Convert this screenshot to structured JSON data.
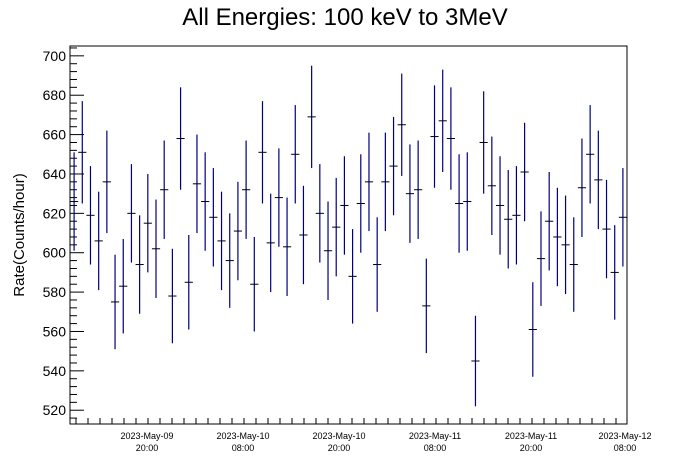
{
  "chart_data": {
    "type": "scatter",
    "title": "All Energies:  100 keV to 3MeV",
    "ylabel": "Rate(Counts/hour)",
    "xlabel": "",
    "ylim": [
      513,
      705
    ],
    "yticks": [
      520,
      540,
      560,
      580,
      600,
      620,
      640,
      660,
      680,
      700
    ],
    "xticks": [
      {
        "date": "2023-May-09",
        "time": "20:00"
      },
      {
        "date": "2023-May-10",
        "time": "08:00"
      },
      {
        "date": "2023-May-10",
        "time": "20:00"
      },
      {
        "date": "2023-May-11",
        "time": "08:00"
      },
      {
        "date": "2023-May-11",
        "time": "20:00"
      },
      {
        "date": "2023-May-12",
        "time": "08:00"
      }
    ],
    "series": [
      {
        "color": "#00007f",
        "points": [
          {
            "y": 626,
            "err": 25
          },
          {
            "y": 651,
            "err": 26
          },
          {
            "y": 619,
            "err": 25
          },
          {
            "y": 606,
            "err": 25
          },
          {
            "y": 636,
            "err": 26
          },
          {
            "y": 575,
            "err": 24
          },
          {
            "y": 583,
            "err": 24
          },
          {
            "y": 620,
            "err": 25
          },
          {
            "y": 594,
            "err": 25
          },
          {
            "y": 615,
            "err": 25
          },
          {
            "y": 602,
            "err": 25
          },
          {
            "y": 632,
            "err": 25
          },
          {
            "y": 578,
            "err": 24
          },
          {
            "y": 658,
            "err": 26
          },
          {
            "y": 585,
            "err": 24
          },
          {
            "y": 635,
            "err": 25
          },
          {
            "y": 626,
            "err": 25
          },
          {
            "y": 618,
            "err": 25
          },
          {
            "y": 606,
            "err": 25
          },
          {
            "y": 596,
            "err": 24
          },
          {
            "y": 611,
            "err": 25
          },
          {
            "y": 632,
            "err": 25
          },
          {
            "y": 584,
            "err": 24
          },
          {
            "y": 651,
            "err": 26
          },
          {
            "y": 605,
            "err": 25
          },
          {
            "y": 628,
            "err": 25
          },
          {
            "y": 603,
            "err": 25
          },
          {
            "y": 650,
            "err": 25
          },
          {
            "y": 609,
            "err": 25
          },
          {
            "y": 669,
            "err": 26
          },
          {
            "y": 620,
            "err": 25
          },
          {
            "y": 601,
            "err": 25
          },
          {
            "y": 613,
            "err": 25
          },
          {
            "y": 624,
            "err": 25
          },
          {
            "y": 588,
            "err": 24
          },
          {
            "y": 625,
            "err": 25
          },
          {
            "y": 636,
            "err": 25
          },
          {
            "y": 594,
            "err": 24
          },
          {
            "y": 636,
            "err": 25
          },
          {
            "y": 644,
            "err": 25
          },
          {
            "y": 665,
            "err": 26
          },
          {
            "y": 630,
            "err": 25
          },
          {
            "y": 632,
            "err": 25
          },
          {
            "y": 573,
            "err": 24
          },
          {
            "y": 659,
            "err": 26
          },
          {
            "y": 667,
            "err": 26
          },
          {
            "y": 658,
            "err": 26
          },
          {
            "y": 625,
            "err": 25
          },
          {
            "y": 626,
            "err": 25
          },
          {
            "y": 545,
            "err": 23
          },
          {
            "y": 656,
            "err": 26
          },
          {
            "y": 634,
            "err": 25
          },
          {
            "y": 624,
            "err": 25
          },
          {
            "y": 617,
            "err": 25
          },
          {
            "y": 619,
            "err": 25
          },
          {
            "y": 641,
            "err": 25
          },
          {
            "y": 561,
            "err": 24
          },
          {
            "y": 597,
            "err": 24
          },
          {
            "y": 616,
            "err": 25
          },
          {
            "y": 608,
            "err": 25
          },
          {
            "y": 604,
            "err": 25
          },
          {
            "y": 594,
            "err": 24
          },
          {
            "y": 633,
            "err": 25
          },
          {
            "y": 650,
            "err": 25
          },
          {
            "y": 637,
            "err": 25
          },
          {
            "y": 612,
            "err": 25
          },
          {
            "y": 590,
            "err": 24
          },
          {
            "y": 618,
            "err": 25
          }
        ]
      }
    ],
    "grid": false,
    "legend": "none"
  }
}
